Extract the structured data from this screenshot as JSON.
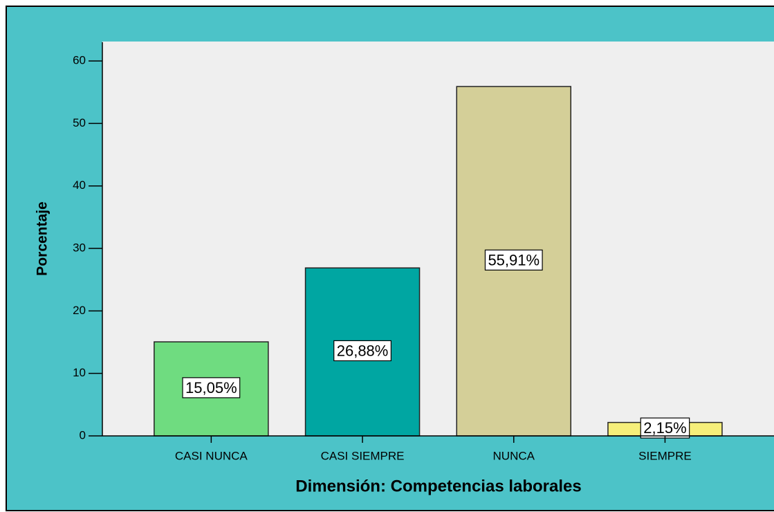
{
  "chart_data": {
    "type": "bar",
    "x_label": "Dimensión: Competencias laborales",
    "y_label": "Porcentaje",
    "categories": [
      "CASI NUNCA",
      "CASI SIEMPRE",
      "NUNCA",
      "SIEMPRE"
    ],
    "values": [
      15.05,
      26.88,
      55.91,
      2.15
    ],
    "value_labels": [
      "15,05%",
      "26,88%",
      "55,91%",
      "2,15%"
    ],
    "colors": [
      "#6fdc80",
      "#00a6a2",
      "#d4cf98",
      "#f6ef7a"
    ],
    "ylim": [
      0,
      63
    ],
    "yticks": [
      0,
      10,
      20,
      30,
      40,
      50,
      60
    ]
  }
}
